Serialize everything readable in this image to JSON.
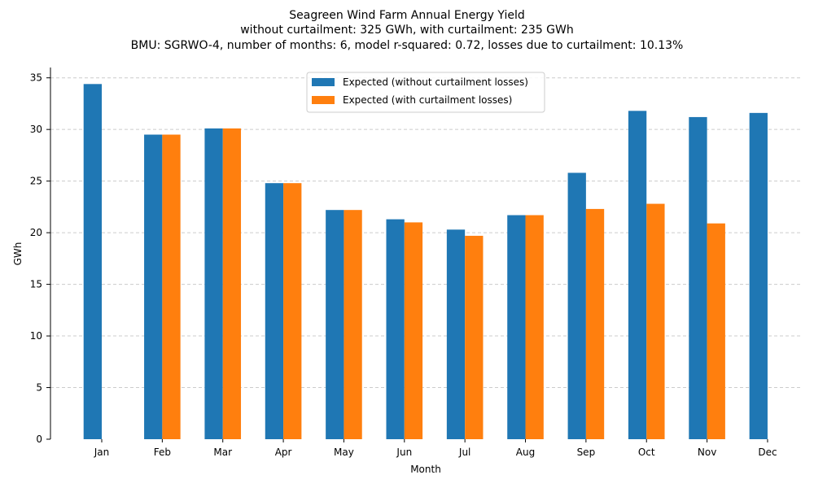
{
  "chart_data": {
    "type": "bar",
    "title": "Seagreen Wind Farm Annual Energy Yield",
    "subtitle_lines": [
      "without curtailment: 325 GWh, with curtailment: 235 GWh",
      "BMU: SGRWO-4, number of months: 6, model r-squared: 0.72, losses due to curtailment: 10.13%"
    ],
    "xlabel": "Month",
    "ylabel": "GWh",
    "ylim": [
      0,
      36
    ],
    "yticks": [
      0,
      5,
      10,
      15,
      20,
      25,
      30,
      35
    ],
    "grid": "horizontal dashed",
    "legend_position": "top-center",
    "categories": [
      "Jan",
      "Feb",
      "Mar",
      "Apr",
      "May",
      "Jun",
      "Jul",
      "Aug",
      "Sep",
      "Oct",
      "Nov",
      "Dec"
    ],
    "series": [
      {
        "name": "Expected (without curtailment losses)",
        "color": "#1f77b4",
        "values": [
          34.4,
          29.5,
          30.1,
          24.8,
          22.2,
          21.3,
          20.3,
          21.7,
          25.8,
          31.8,
          31.2,
          31.6
        ]
      },
      {
        "name": "Expected (with curtailment losses)",
        "color": "#ff7f0e",
        "values": [
          null,
          29.5,
          30.1,
          24.8,
          22.2,
          21.0,
          19.7,
          21.7,
          22.3,
          22.8,
          20.9,
          null
        ]
      }
    ]
  }
}
